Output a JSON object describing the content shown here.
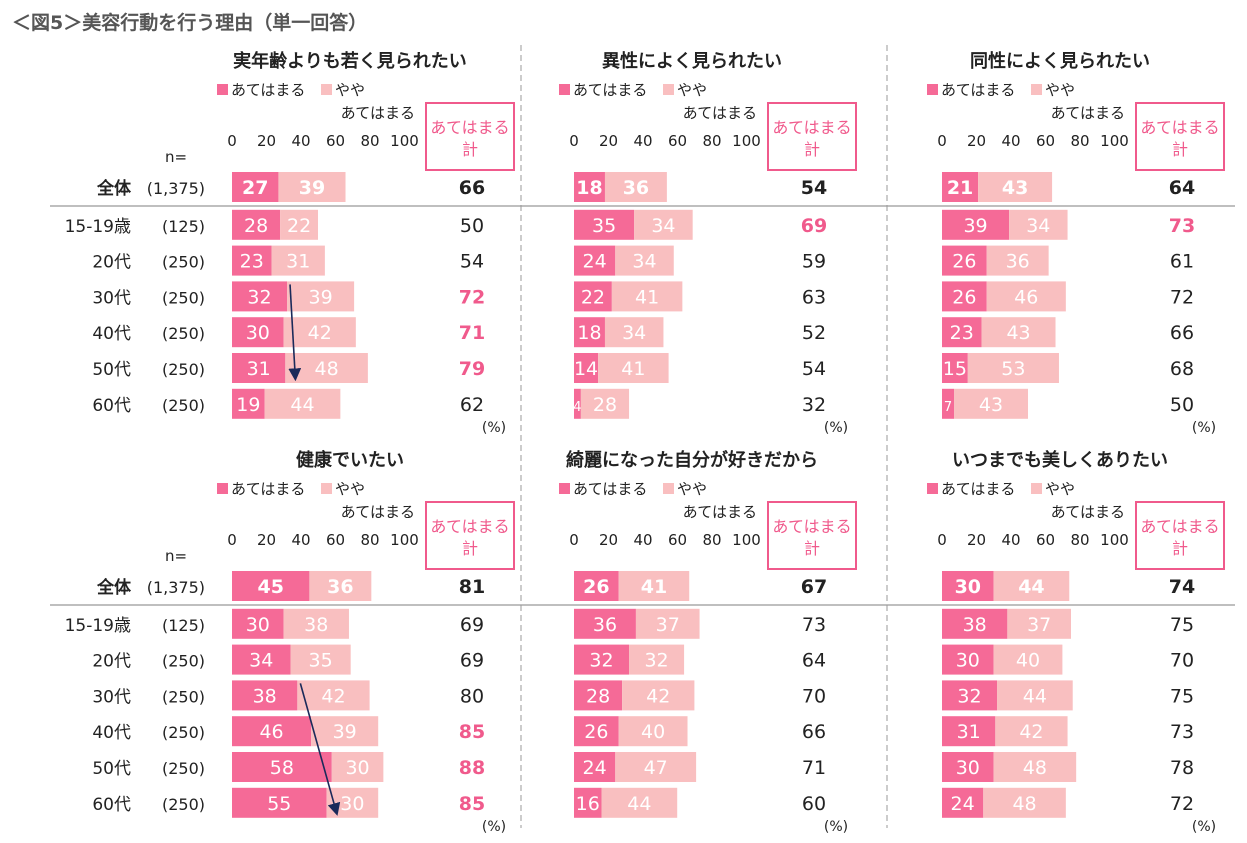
{
  "figure_title": "＜図5＞美容行動を行う理由（単一回答）",
  "n_label": "n=",
  "legend": {
    "strong": "あてはまる",
    "weak": "やや",
    "weak_line2": "あてはまる"
  },
  "total_box": [
    "あてはまる",
    "計"
  ],
  "pct_label": "(%)",
  "axis_ticks": [
    "0",
    "20",
    "40",
    "60",
    "80",
    "100"
  ],
  "colors": {
    "strong": "#F56A97",
    "weak": "#F9BFC0",
    "highlight": "#F05A8C",
    "arrow": "#1B2A5A",
    "divider": "#999999"
  },
  "row_labels": [
    {
      "label": "全体",
      "n": "(1,375)",
      "bold": true
    },
    {
      "label": "15-19歳",
      "n": "(125)"
    },
    {
      "label": "20代",
      "n": "(250)"
    },
    {
      "label": "30代",
      "n": "(250)"
    },
    {
      "label": "40代",
      "n": "(250)"
    },
    {
      "label": "50代",
      "n": "(250)"
    },
    {
      "label": "60代",
      "n": "(250)"
    }
  ],
  "chart_data": [
    {
      "type": "bar",
      "title": "実年齢よりも若く見られたい",
      "series": [
        {
          "name": "あてはまる",
          "values": [
            27,
            28,
            23,
            32,
            30,
            31,
            19
          ]
        },
        {
          "name": "やや あてはまる",
          "values": [
            39,
            22,
            31,
            39,
            42,
            48,
            44
          ]
        }
      ],
      "totals": [
        66,
        50,
        54,
        72,
        71,
        79,
        62
      ],
      "highlight": [
        false,
        false,
        false,
        true,
        true,
        true,
        false
      ],
      "arrow": {
        "from_row": 3,
        "to_row": 5
      }
    },
    {
      "type": "bar",
      "title": "異性によく見られたい",
      "series": [
        {
          "name": "あてはまる",
          "values": [
            18,
            35,
            24,
            22,
            18,
            14,
            4
          ]
        },
        {
          "name": "やや あてはまる",
          "values": [
            36,
            34,
            34,
            41,
            34,
            41,
            28
          ]
        }
      ],
      "totals": [
        54,
        69,
        59,
        63,
        52,
        54,
        32
      ],
      "highlight": [
        false,
        true,
        false,
        false,
        false,
        false,
        false
      ]
    },
    {
      "type": "bar",
      "title": "同性によく見られたい",
      "series": [
        {
          "name": "あてはまる",
          "values": [
            21,
            39,
            26,
            26,
            23,
            15,
            7
          ]
        },
        {
          "name": "やや あてはまる",
          "values": [
            43,
            34,
            36,
            46,
            43,
            53,
            43
          ]
        }
      ],
      "totals": [
        64,
        73,
        61,
        72,
        66,
        68,
        50
      ],
      "highlight": [
        false,
        true,
        false,
        false,
        false,
        false,
        false
      ]
    },
    {
      "type": "bar",
      "title": "健康でいたい",
      "series": [
        {
          "name": "あてはまる",
          "values": [
            45,
            30,
            34,
            38,
            46,
            58,
            55
          ]
        },
        {
          "name": "やや あてはまる",
          "values": [
            36,
            38,
            35,
            42,
            39,
            30,
            30
          ]
        }
      ],
      "totals": [
        81,
        69,
        69,
        80,
        85,
        88,
        85
      ],
      "highlight": [
        false,
        false,
        false,
        false,
        true,
        true,
        true
      ],
      "arrow": {
        "from_row": 3,
        "to_row": 6
      }
    },
    {
      "type": "bar",
      "title": "綺麗になった自分が好きだから",
      "series": [
        {
          "name": "あてはまる",
          "values": [
            26,
            36,
            32,
            28,
            26,
            24,
            16
          ]
        },
        {
          "name": "やや あてはまる",
          "values": [
            41,
            37,
            32,
            42,
            40,
            47,
            44
          ]
        }
      ],
      "totals": [
        67,
        73,
        64,
        70,
        66,
        71,
        60
      ],
      "highlight": [
        false,
        false,
        false,
        false,
        false,
        false,
        false
      ]
    },
    {
      "type": "bar",
      "title": "いつまでも美しくありたい",
      "series": [
        {
          "name": "あてはまる",
          "values": [
            30,
            38,
            30,
            32,
            31,
            30,
            24
          ]
        },
        {
          "name": "やや あてはまる",
          "values": [
            44,
            37,
            40,
            44,
            42,
            48,
            48
          ]
        }
      ],
      "totals": [
        74,
        75,
        70,
        75,
        73,
        78,
        72
      ],
      "highlight": [
        false,
        false,
        false,
        false,
        false,
        false,
        false
      ]
    }
  ]
}
